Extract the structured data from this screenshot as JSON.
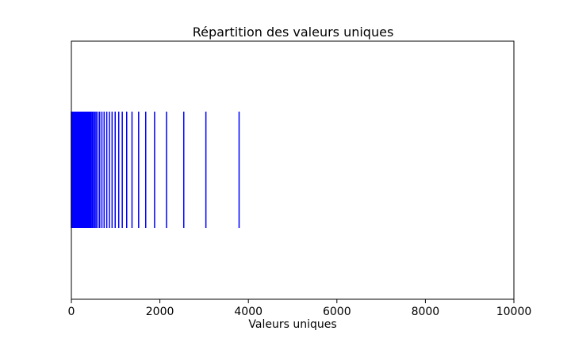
{
  "chart_data": {
    "type": "eventplot",
    "title": "Répartition des valeurs uniques",
    "xlabel": "Valeurs uniques",
    "ylabel": "",
    "xlim": [
      0,
      10000
    ],
    "ylim": [
      0,
      2
    ],
    "grid": false,
    "x_ticks": [
      0,
      2000,
      4000,
      6000,
      8000,
      10000
    ],
    "x_tick_labels": [
      "0",
      "2000",
      "4000",
      "6000",
      "8000",
      "10000"
    ],
    "series": [
      {
        "values": [
          1,
          2,
          3,
          4,
          5,
          6,
          7,
          8,
          9,
          10,
          12,
          14,
          16,
          18,
          20,
          23,
          26,
          29,
          32,
          36,
          40,
          45,
          50,
          55,
          60,
          66,
          72,
          79,
          86,
          94,
          102,
          111,
          120,
          130,
          140,
          151,
          162,
          174,
          186,
          199,
          212,
          226,
          240,
          255,
          270,
          286,
          302,
          319,
          336,
          354,
          372,
          391,
          410,
          430,
          450,
          475,
          500,
          530,
          560,
          600,
          640,
          690,
          740,
          800,
          860,
          920,
          990,
          1070,
          1150,
          1250,
          1370,
          1520,
          1680,
          1880,
          2150,
          2540,
          3040,
          3790
        ],
        "color": "#0000ff"
      }
    ]
  }
}
